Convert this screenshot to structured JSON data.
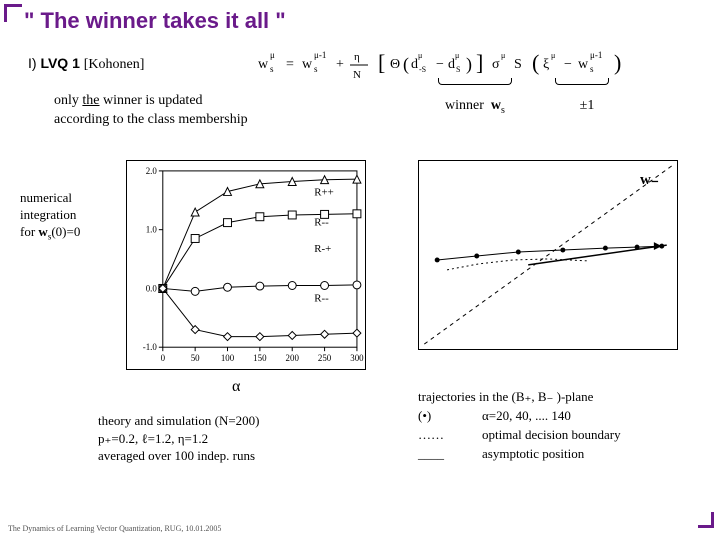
{
  "colors": {
    "accent": "#6a1a8a",
    "brace": "#000000",
    "chart_border": "#000000"
  },
  "title": "\" The winner takes it all \"",
  "section": {
    "roman": "I)",
    "name": "LVQ 1",
    "source": "[Kohonen]"
  },
  "only_winner_l1": "only the winner is updated",
  "only_winner_l2": "according to the class membership",
  "winner_label": "winner",
  "ws_symbol": "w",
  "ws_sub": "s",
  "pm1": "±1",
  "numint_l1": "numerical",
  "numint_l2": "integration",
  "numint_l3_a": "for ",
  "numint_l3_b": "w",
  "numint_l3_sub": "s",
  "numint_l3_c": "(0)=0",
  "alpha": "α",
  "left_caption_l1": "theory and simulation (N=200)",
  "left_caption_l2": "p₊=0.2,  ℓ=1.2, η=1.2",
  "left_caption_l3": "averaged over 100 indep. runs",
  "wminus": "w₋",
  "traj_title": "trajectories in the (B₊, B₋ )-plane",
  "traj_r1_sym": "(•)",
  "traj_r1_txt": "α=20, 40, .... 140",
  "traj_r2_sym": "……",
  "traj_r2_txt": "optimal decision boundary",
  "traj_r3_sym": "____",
  "traj_r3_txt": "asymptotic position",
  "footer": "The Dynamics of Learning Vector Quantization, RUG, 10.01.2005",
  "formula_tex": "w_s^μ = w_s^{μ-1} + (η/N)[ Θ(d_{-S}^μ − d_S^μ) σ^μ S (ξ^μ − w_s^{μ-1}) ]",
  "chart_left": {
    "type": "line+scatter",
    "x": [
      0,
      50,
      100,
      150,
      200,
      250,
      300
    ],
    "ylim": [
      -1.0,
      2.0
    ],
    "xlim": [
      0,
      300
    ],
    "ytick": [
      -1.0,
      0.0,
      1.0,
      2.0
    ],
    "xtick": [
      0,
      50,
      100,
      150,
      200,
      250,
      300
    ],
    "tick_fontsize": 9,
    "series": [
      {
        "label": "R++",
        "marker": "triangle",
        "label_pos": [
          0.78,
          0.14
        ],
        "data": [
          0,
          1.3,
          1.65,
          1.78,
          1.82,
          1.85,
          1.86
        ]
      },
      {
        "label": "R--",
        "marker": "square",
        "label_pos": [
          0.78,
          0.31
        ],
        "data": [
          0,
          0.85,
          1.12,
          1.22,
          1.25,
          1.26,
          1.27
        ]
      },
      {
        "label": "R-+",
        "marker": "circle",
        "label_pos": [
          0.78,
          0.46
        ],
        "data": [
          0,
          -0.05,
          0.02,
          0.04,
          0.05,
          0.05,
          0.06
        ]
      },
      {
        "label": "R--",
        "marker": "diamond",
        "label_pos": [
          0.78,
          0.74
        ],
        "data": [
          0,
          -0.7,
          -0.82,
          -0.82,
          -0.8,
          -0.78,
          -0.76
        ]
      }
    ],
    "grid_color": "#cccccc",
    "line_color": "#000000",
    "marker_fill": "#ffffff",
    "background": "#ffffff"
  },
  "chart_right": {
    "type": "trajectory",
    "background": "#ffffff",
    "diag_style": "dashed",
    "diag_color": "#000000",
    "traj_color": "#000000",
    "marker_color": "#000000",
    "main_traj": [
      [
        18,
        100
      ],
      [
        58,
        96
      ],
      [
        100,
        92
      ],
      [
        145,
        90
      ],
      [
        188,
        88
      ],
      [
        220,
        87
      ],
      [
        245,
        86
      ]
    ],
    "second_traj": [
      [
        28,
        110
      ],
      [
        60,
        104
      ],
      [
        95,
        100
      ],
      [
        130,
        99
      ],
      [
        150,
        100
      ],
      [
        172,
        101
      ]
    ],
    "asymptote": [
      [
        110,
        105
      ],
      [
        250,
        85
      ]
    ]
  }
}
